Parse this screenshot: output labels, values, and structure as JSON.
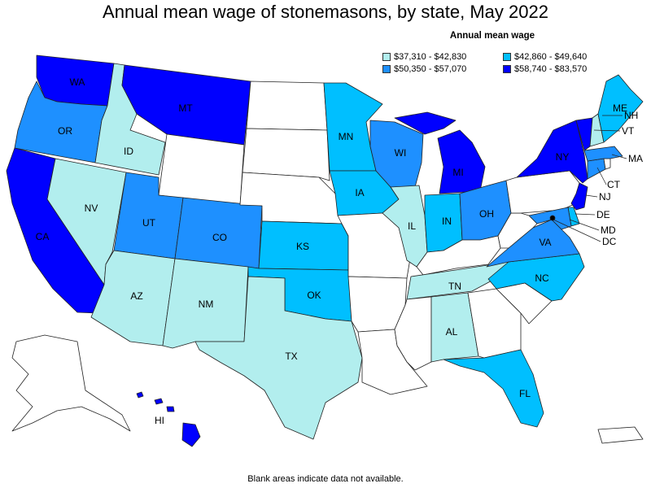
{
  "title": "Annual mean wage of stonemasons, by state, May 2022",
  "legend": {
    "title": "Annual mean wage",
    "bins": [
      {
        "label": "$37,310 - $42,830",
        "color": "#b2eeee"
      },
      {
        "label": "$42,860 - $49,640",
        "color": "#00bfff"
      },
      {
        "label": "$50,350 - $57,070",
        "color": "#1e90ff"
      },
      {
        "label": "$58,740 - $83,570",
        "color": "#0000ff"
      }
    ],
    "no_data_color": "#ffffff"
  },
  "states": [
    {
      "code": "WA",
      "bin": 3
    },
    {
      "code": "OR",
      "bin": 2
    },
    {
      "code": "CA",
      "bin": 3
    },
    {
      "code": "ID",
      "bin": 0
    },
    {
      "code": "NV",
      "bin": 0
    },
    {
      "code": "MT",
      "bin": 3
    },
    {
      "code": "UT",
      "bin": 2
    },
    {
      "code": "AZ",
      "bin": 0
    },
    {
      "code": "CO",
      "bin": 2
    },
    {
      "code": "NM",
      "bin": 0
    },
    {
      "code": "TX",
      "bin": 0
    },
    {
      "code": "KS",
      "bin": 1
    },
    {
      "code": "OK",
      "bin": 1
    },
    {
      "code": "MN",
      "bin": 1
    },
    {
      "code": "IA",
      "bin": 1
    },
    {
      "code": "WI",
      "bin": 2
    },
    {
      "code": "IL",
      "bin": 0
    },
    {
      "code": "MI",
      "bin": 3
    },
    {
      "code": "IN",
      "bin": 1
    },
    {
      "code": "OH",
      "bin": 2
    },
    {
      "code": "TN",
      "bin": 0
    },
    {
      "code": "AL",
      "bin": 0
    },
    {
      "code": "FL",
      "bin": 1
    },
    {
      "code": "NC",
      "bin": 1
    },
    {
      "code": "VA",
      "bin": 2
    },
    {
      "code": "NY",
      "bin": 3
    },
    {
      "code": "VT",
      "bin": 3
    },
    {
      "code": "NH",
      "bin": 0
    },
    {
      "code": "ME",
      "bin": 1
    },
    {
      "code": "MA",
      "bin": 2
    },
    {
      "code": "CT",
      "bin": 2
    },
    {
      "code": "NJ",
      "bin": 3
    },
    {
      "code": "DE",
      "bin": 1
    },
    {
      "code": "MD",
      "bin": 2
    },
    {
      "code": "DC",
      "bin": 3
    },
    {
      "code": "HI",
      "bin": 3
    },
    {
      "code": "WY",
      "bin": null
    },
    {
      "code": "ND",
      "bin": null
    },
    {
      "code": "SD",
      "bin": null
    },
    {
      "code": "NE",
      "bin": null
    },
    {
      "code": "MO",
      "bin": null
    },
    {
      "code": "AR",
      "bin": null
    },
    {
      "code": "LA",
      "bin": null
    },
    {
      "code": "MS",
      "bin": null
    },
    {
      "code": "GA",
      "bin": null
    },
    {
      "code": "SC",
      "bin": null
    },
    {
      "code": "KY",
      "bin": null
    },
    {
      "code": "WV",
      "bin": null
    },
    {
      "code": "PA",
      "bin": null
    },
    {
      "code": "RI",
      "bin": null
    },
    {
      "code": "AK",
      "bin": null
    },
    {
      "code": "PR",
      "bin": null
    }
  ],
  "footnote": "Blank areas indicate data not available."
}
